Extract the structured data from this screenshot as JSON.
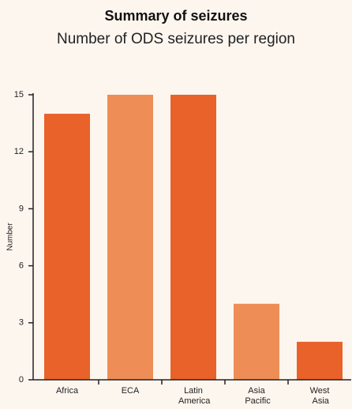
{
  "chart_data": {
    "type": "bar",
    "title": "Summary of seizures",
    "subtitle": "Number of ODS seizures per region",
    "y_label": "Number",
    "categories": [
      "Africa",
      "ECA",
      "Latin America",
      "Asia Pacific",
      "West Asia"
    ],
    "values": [
      14,
      15,
      15,
      4,
      2
    ],
    "colors": [
      "#e8622a",
      "#ef8d57",
      "#e8622a",
      "#ef8d57",
      "#e8622a"
    ],
    "ylim": [
      0,
      15
    ],
    "yticks": [
      0,
      3,
      6,
      9,
      12,
      15
    ],
    "grid": false
  }
}
